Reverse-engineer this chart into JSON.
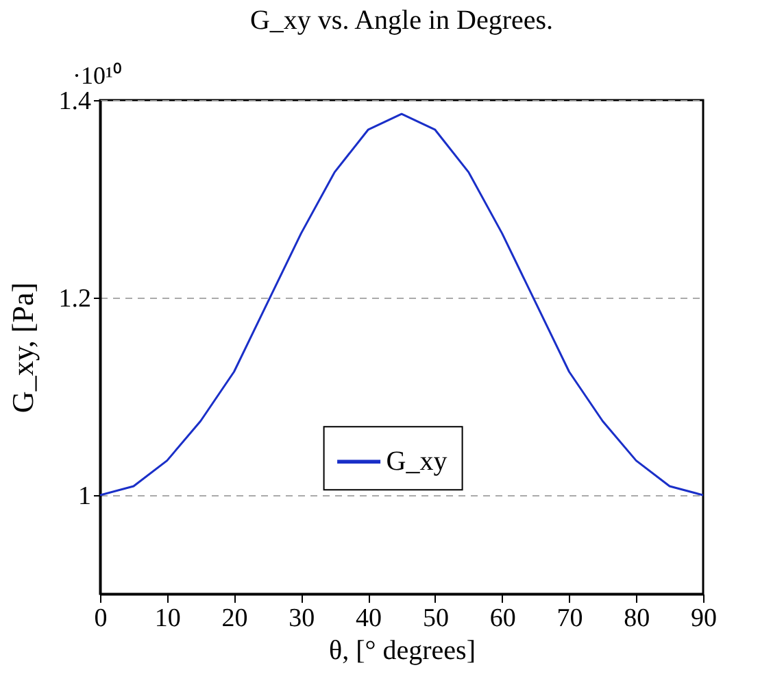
{
  "chart_data": {
    "type": "line",
    "title": "G_xy vs. Angle in Degrees.",
    "xlabel": "θ, [° degrees]",
    "ylabel": "G_xy, [Pa]",
    "annotations": [
      "·10¹⁰"
    ],
    "x": [
      0,
      5,
      10,
      15,
      20,
      25,
      30,
      35,
      40,
      45,
      50,
      55,
      60,
      65,
      70,
      75,
      80,
      85,
      90
    ],
    "series": [
      {
        "name": "G_xy",
        "color": "#1a2fc8",
        "values": [
          1.0,
          1.009,
          1.035,
          1.075,
          1.125,
          1.195,
          1.265,
          1.327,
          1.37,
          1.386,
          1.37,
          1.327,
          1.265,
          1.195,
          1.125,
          1.075,
          1.035,
          1.009,
          1.0
        ]
      }
    ],
    "xlim": [
      0,
      90
    ],
    "xticks": [
      0,
      10,
      20,
      30,
      40,
      50,
      60,
      70,
      80,
      90
    ],
    "ylim": [
      0.9,
      1.4
    ],
    "yticks": [
      1,
      1.2,
      1.4
    ],
    "grid": "y",
    "legend": "bottom",
    "marker": "none",
    "line_style": "solid"
  }
}
